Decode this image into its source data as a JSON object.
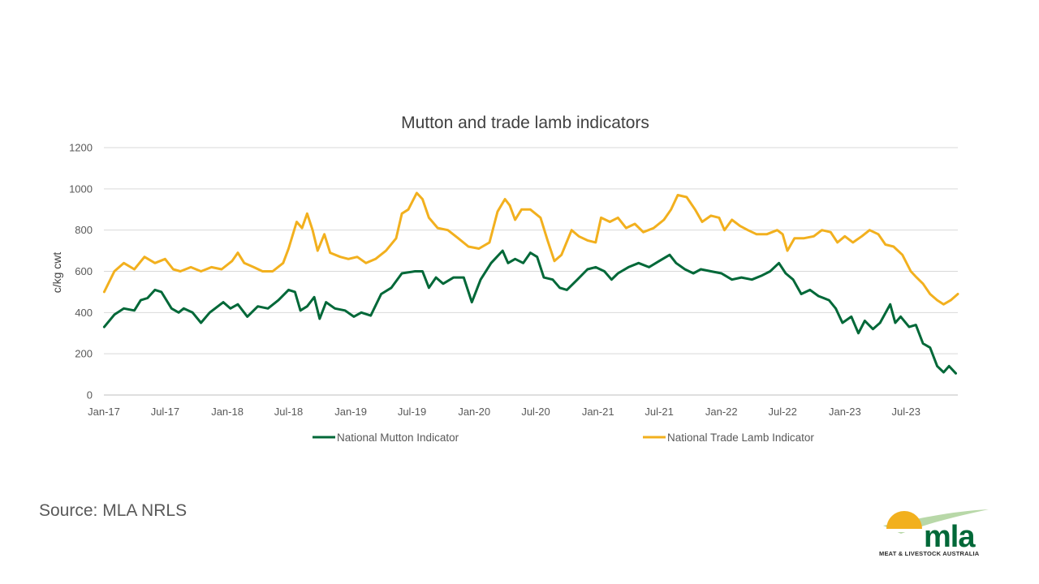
{
  "chart_data": {
    "type": "line",
    "title": "Mutton and trade lamb indicators",
    "ylabel": "c/kg cwt",
    "xlabel": "",
    "ylim": [
      0,
      1200
    ],
    "yticks": [
      0,
      200,
      400,
      600,
      800,
      1000,
      1200
    ],
    "x_tick_labels": [
      "Jan-17",
      "Jul-17",
      "Jan-18",
      "Jul-18",
      "Jan-19",
      "Jul-19",
      "Jan-20",
      "Jul-20",
      "Jan-21",
      "Jul-21",
      "Jan-22",
      "Jul-22",
      "Jan-23",
      "Jul-23"
    ],
    "x_start": "Jan-17",
    "x_end": "Nov-23",
    "grid": "horizontal",
    "legend_position": "bottom",
    "series": [
      {
        "name": "National Mutton Indicator",
        "color": "#006838",
        "points": [
          [
            "2017-01-02",
            330
          ],
          [
            "2017-02-01",
            390
          ],
          [
            "2017-03-01",
            420
          ],
          [
            "2017-04-01",
            410
          ],
          [
            "2017-04-20",
            460
          ],
          [
            "2017-05-10",
            470
          ],
          [
            "2017-06-01",
            510
          ],
          [
            "2017-06-20",
            500
          ],
          [
            "2017-07-20",
            420
          ],
          [
            "2017-08-10",
            400
          ],
          [
            "2017-08-25",
            420
          ],
          [
            "2017-09-20",
            400
          ],
          [
            "2017-10-15",
            350
          ],
          [
            "2017-11-10",
            400
          ],
          [
            "2017-12-20",
            450
          ],
          [
            "2018-01-10",
            420
          ],
          [
            "2018-02-01",
            440
          ],
          [
            "2018-03-01",
            380
          ],
          [
            "2018-04-01",
            430
          ],
          [
            "2018-05-01",
            420
          ],
          [
            "2018-06-01",
            460
          ],
          [
            "2018-07-01",
            510
          ],
          [
            "2018-07-20",
            500
          ],
          [
            "2018-08-05",
            410
          ],
          [
            "2018-08-25",
            430
          ],
          [
            "2018-09-15",
            475
          ],
          [
            "2018-10-01",
            370
          ],
          [
            "2018-10-20",
            450
          ],
          [
            "2018-11-15",
            420
          ],
          [
            "2018-12-15",
            410
          ],
          [
            "2019-01-10",
            380
          ],
          [
            "2019-02-01",
            400
          ],
          [
            "2019-03-01",
            385
          ],
          [
            "2019-04-01",
            490
          ],
          [
            "2019-05-01",
            520
          ],
          [
            "2019-06-01",
            590
          ],
          [
            "2019-07-10",
            600
          ],
          [
            "2019-08-01",
            600
          ],
          [
            "2019-08-20",
            520
          ],
          [
            "2019-09-10",
            570
          ],
          [
            "2019-10-01",
            540
          ],
          [
            "2019-11-01",
            570
          ],
          [
            "2019-12-01",
            570
          ],
          [
            "2019-12-25",
            450
          ],
          [
            "2020-01-20",
            560
          ],
          [
            "2020-02-20",
            640
          ],
          [
            "2020-03-25",
            700
          ],
          [
            "2020-04-10",
            640
          ],
          [
            "2020-05-01",
            660
          ],
          [
            "2020-05-25",
            640
          ],
          [
            "2020-06-15",
            690
          ],
          [
            "2020-07-05",
            670
          ],
          [
            "2020-07-25",
            570
          ],
          [
            "2020-08-20",
            560
          ],
          [
            "2020-09-10",
            520
          ],
          [
            "2020-10-01",
            510
          ],
          [
            "2020-11-01",
            560
          ],
          [
            "2020-12-01",
            610
          ],
          [
            "2020-12-25",
            620
          ],
          [
            "2021-01-20",
            600
          ],
          [
            "2021-02-10",
            560
          ],
          [
            "2021-03-01",
            590
          ],
          [
            "2021-04-01",
            620
          ],
          [
            "2021-05-01",
            640
          ],
          [
            "2021-06-01",
            620
          ],
          [
            "2021-07-01",
            650
          ],
          [
            "2021-08-01",
            680
          ],
          [
            "2021-08-20",
            640
          ],
          [
            "2021-09-15",
            610
          ],
          [
            "2021-10-10",
            590
          ],
          [
            "2021-11-01",
            610
          ],
          [
            "2021-12-01",
            600
          ],
          [
            "2022-01-01",
            590
          ],
          [
            "2022-02-01",
            560
          ],
          [
            "2022-03-01",
            570
          ],
          [
            "2022-04-01",
            560
          ],
          [
            "2022-05-01",
            580
          ],
          [
            "2022-05-25",
            600
          ],
          [
            "2022-06-20",
            640
          ],
          [
            "2022-07-10",
            590
          ],
          [
            "2022-08-01",
            560
          ],
          [
            "2022-08-25",
            490
          ],
          [
            "2022-09-20",
            510
          ],
          [
            "2022-10-15",
            480
          ],
          [
            "2022-11-15",
            460
          ],
          [
            "2022-12-05",
            420
          ],
          [
            "2022-12-25",
            350
          ],
          [
            "2023-01-20",
            380
          ],
          [
            "2023-02-10",
            300
          ],
          [
            "2023-03-01",
            360
          ],
          [
            "2023-03-25",
            320
          ],
          [
            "2023-04-15",
            350
          ],
          [
            "2023-05-15",
            440
          ],
          [
            "2023-05-30",
            350
          ],
          [
            "2023-06-15",
            380
          ],
          [
            "2023-07-10",
            330
          ],
          [
            "2023-07-30",
            340
          ],
          [
            "2023-08-20",
            250
          ],
          [
            "2023-09-10",
            230
          ],
          [
            "2023-10-01",
            140
          ],
          [
            "2023-10-20",
            110
          ],
          [
            "2023-11-05",
            140
          ],
          [
            "2023-11-25",
            105
          ]
        ]
      },
      {
        "name": "National Trade Lamb Indicator",
        "color": "#f2b01e",
        "points": [
          [
            "2017-01-02",
            500
          ],
          [
            "2017-02-01",
            600
          ],
          [
            "2017-03-01",
            640
          ],
          [
            "2017-04-01",
            610
          ],
          [
            "2017-05-01",
            670
          ],
          [
            "2017-06-01",
            640
          ],
          [
            "2017-07-01",
            660
          ],
          [
            "2017-07-25",
            610
          ],
          [
            "2017-08-15",
            600
          ],
          [
            "2017-09-15",
            620
          ],
          [
            "2017-10-15",
            600
          ],
          [
            "2017-11-15",
            620
          ],
          [
            "2017-12-15",
            610
          ],
          [
            "2018-01-15",
            650
          ],
          [
            "2018-02-01",
            690
          ],
          [
            "2018-02-20",
            640
          ],
          [
            "2018-03-20",
            620
          ],
          [
            "2018-04-15",
            600
          ],
          [
            "2018-05-15",
            600
          ],
          [
            "2018-06-15",
            640
          ],
          [
            "2018-07-01",
            710
          ],
          [
            "2018-07-25",
            840
          ],
          [
            "2018-08-10",
            810
          ],
          [
            "2018-08-25",
            880
          ],
          [
            "2018-09-10",
            800
          ],
          [
            "2018-09-25",
            700
          ],
          [
            "2018-10-15",
            780
          ],
          [
            "2018-11-01",
            690
          ],
          [
            "2018-12-01",
            670
          ],
          [
            "2018-12-25",
            660
          ],
          [
            "2019-01-20",
            670
          ],
          [
            "2019-02-15",
            640
          ],
          [
            "2019-03-15",
            660
          ],
          [
            "2019-04-15",
            700
          ],
          [
            "2019-05-15",
            760
          ],
          [
            "2019-06-01",
            880
          ],
          [
            "2019-06-20",
            900
          ],
          [
            "2019-07-15",
            980
          ],
          [
            "2019-08-01",
            950
          ],
          [
            "2019-08-20",
            860
          ],
          [
            "2019-09-15",
            810
          ],
          [
            "2019-10-15",
            800
          ],
          [
            "2019-11-15",
            760
          ],
          [
            "2019-12-15",
            720
          ],
          [
            "2020-01-15",
            710
          ],
          [
            "2020-02-15",
            740
          ],
          [
            "2020-03-10",
            890
          ],
          [
            "2020-04-01",
            950
          ],
          [
            "2020-04-15",
            920
          ],
          [
            "2020-05-01",
            850
          ],
          [
            "2020-05-20",
            900
          ],
          [
            "2020-06-15",
            900
          ],
          [
            "2020-07-15",
            860
          ],
          [
            "2020-08-05",
            750
          ],
          [
            "2020-08-25",
            650
          ],
          [
            "2020-09-15",
            680
          ],
          [
            "2020-10-15",
            800
          ],
          [
            "2020-11-05",
            770
          ],
          [
            "2020-12-01",
            750
          ],
          [
            "2020-12-25",
            740
          ],
          [
            "2021-01-10",
            860
          ],
          [
            "2021-02-05",
            840
          ],
          [
            "2021-03-01",
            860
          ],
          [
            "2021-03-25",
            810
          ],
          [
            "2021-04-20",
            830
          ],
          [
            "2021-05-15",
            790
          ],
          [
            "2021-06-15",
            810
          ],
          [
            "2021-07-15",
            850
          ],
          [
            "2021-08-05",
            900
          ],
          [
            "2021-08-25",
            970
          ],
          [
            "2021-09-20",
            960
          ],
          [
            "2021-10-15",
            900
          ],
          [
            "2021-11-05",
            840
          ],
          [
            "2021-12-01",
            870
          ],
          [
            "2021-12-25",
            860
          ],
          [
            "2022-01-10",
            800
          ],
          [
            "2022-02-01",
            850
          ],
          [
            "2022-02-25",
            820
          ],
          [
            "2022-03-20",
            800
          ],
          [
            "2022-04-15",
            780
          ],
          [
            "2022-05-15",
            780
          ],
          [
            "2022-06-15",
            800
          ],
          [
            "2022-07-01",
            780
          ],
          [
            "2022-07-15",
            700
          ],
          [
            "2022-08-05",
            760
          ],
          [
            "2022-09-01",
            760
          ],
          [
            "2022-10-01",
            770
          ],
          [
            "2022-10-25",
            800
          ],
          [
            "2022-11-20",
            790
          ],
          [
            "2022-12-10",
            740
          ],
          [
            "2023-01-01",
            770
          ],
          [
            "2023-01-25",
            740
          ],
          [
            "2023-02-20",
            770
          ],
          [
            "2023-03-15",
            800
          ],
          [
            "2023-04-10",
            780
          ],
          [
            "2023-05-01",
            730
          ],
          [
            "2023-05-25",
            720
          ],
          [
            "2023-06-20",
            680
          ],
          [
            "2023-07-15",
            600
          ],
          [
            "2023-08-01",
            570
          ],
          [
            "2023-08-20",
            540
          ],
          [
            "2023-09-10",
            490
          ],
          [
            "2023-10-01",
            460
          ],
          [
            "2023-10-20",
            440
          ],
          [
            "2023-11-10",
            460
          ],
          [
            "2023-12-01",
            490
          ]
        ]
      }
    ]
  },
  "footer": {
    "source_text": "Source: MLA NRLS"
  },
  "logo": {
    "wordmark": "mla",
    "tagline": "MEAT & LIVESTOCK AUSTRALIA",
    "colors": {
      "sun": "#f2b01e",
      "text": "#006838",
      "swoosh": "#b8d8a8"
    }
  }
}
